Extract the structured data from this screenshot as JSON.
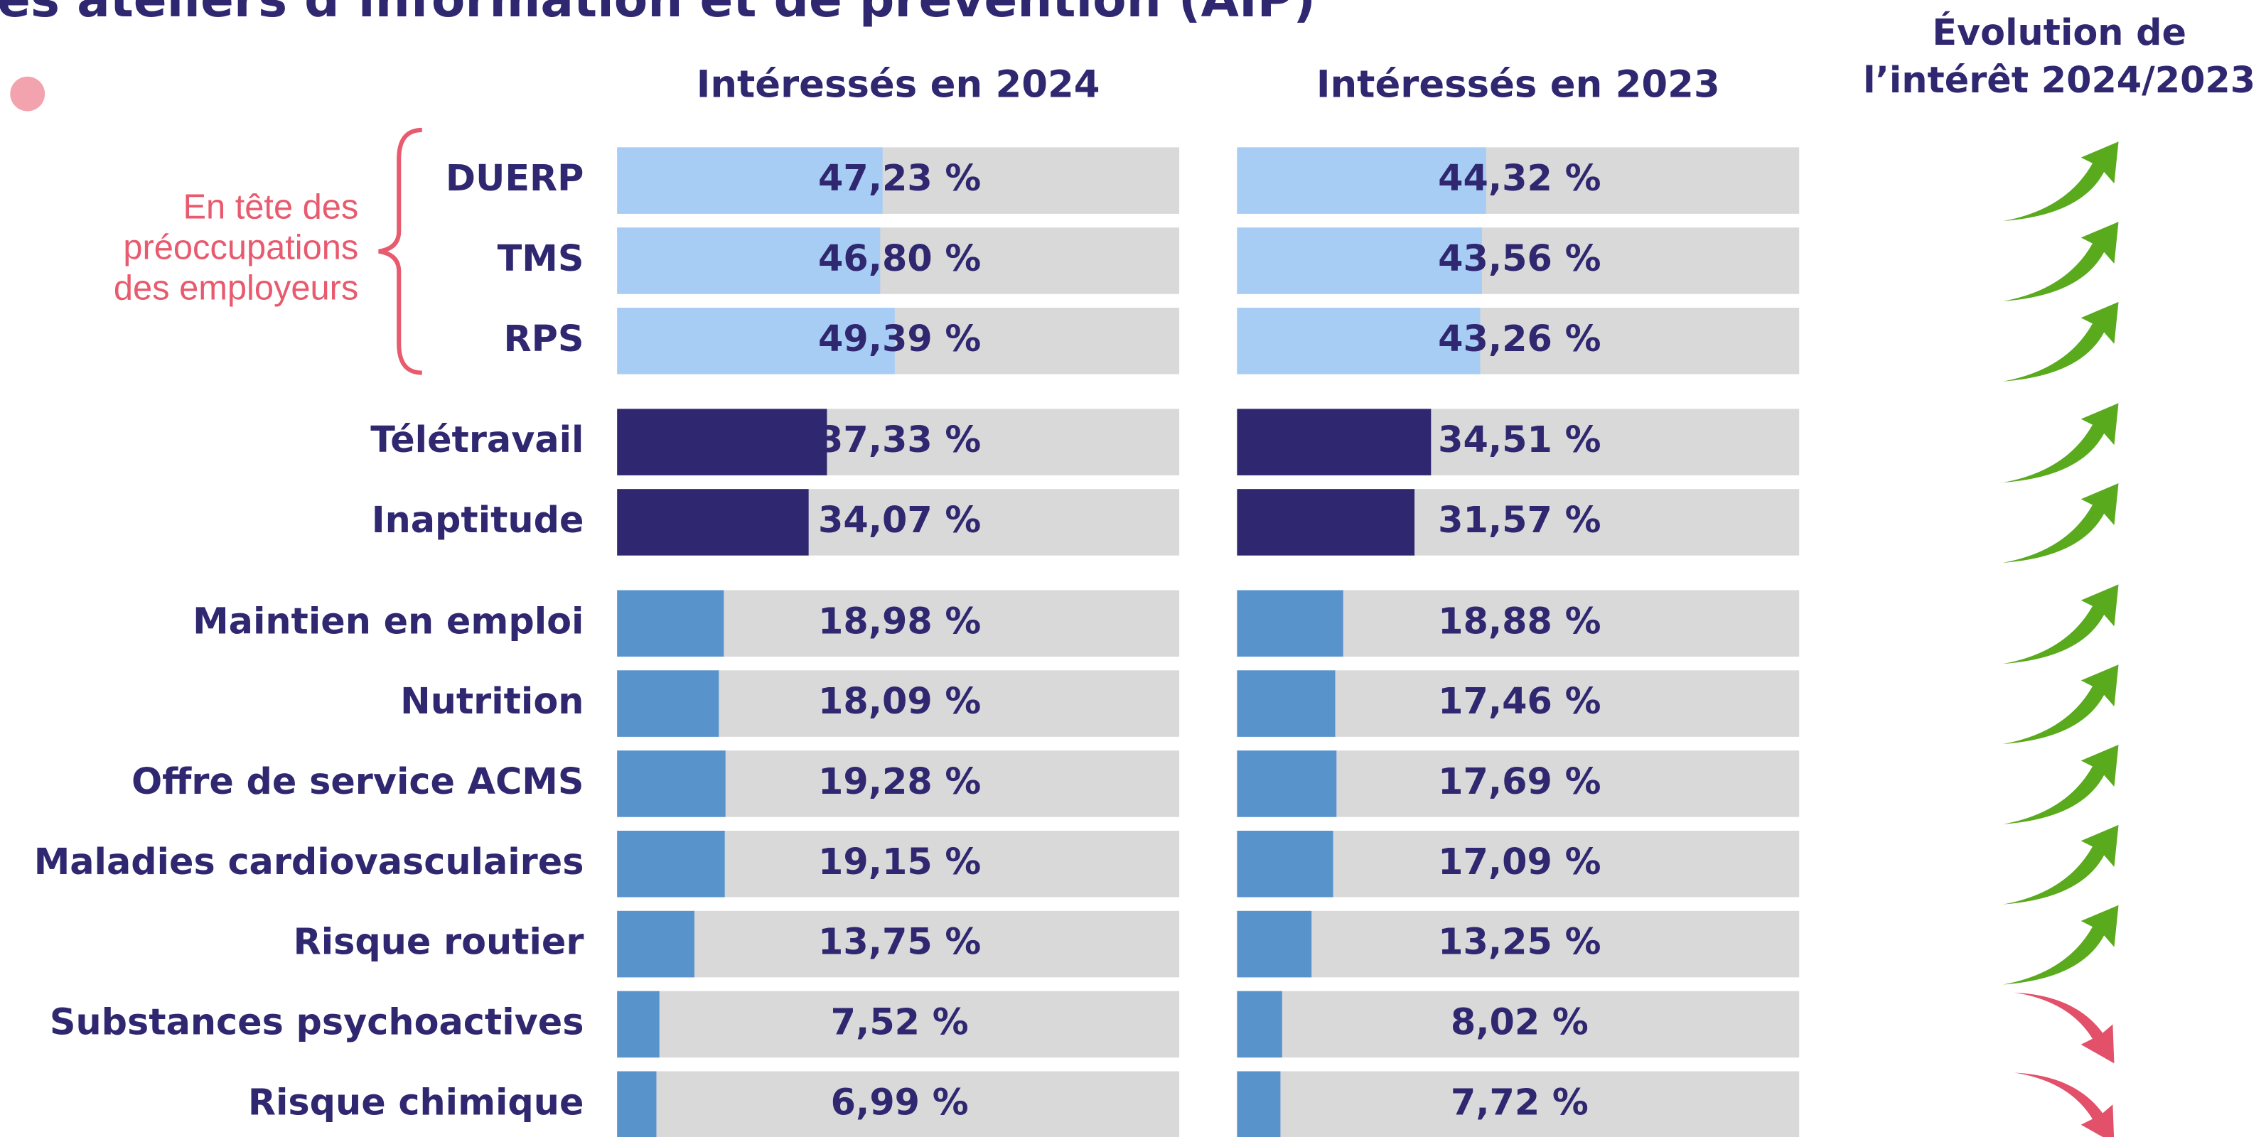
{
  "chart_data": {
    "type": "bar",
    "orientation": "horizontal",
    "title": "es ateliers d’information et de prévention (AIP)",
    "annotation": [
      "En tête des",
      "préoccupations",
      "des employeurs"
    ],
    "evolution_header": [
      "Évolution de",
      "l’intérêt 2024/2023"
    ],
    "categories": [
      "DUERP",
      "TMS",
      "RPS",
      "Télétravail",
      "Inaptitude",
      "Maintien en emploi",
      "Nutrition",
      "Offre de service ACMS",
      "Maladies cardiovasculaires",
      "Risque routier",
      "Substances psychoactives",
      "Risque chimique"
    ],
    "colors": [
      "#a8cdf5",
      "#a8cdf5",
      "#a8cdf5",
      "#2f2870",
      "#2f2870",
      "#5893cc",
      "#5893cc",
      "#5893cc",
      "#5893cc",
      "#5893cc",
      "#5893cc",
      "#5893cc"
    ],
    "track_color": "#d9d9d9",
    "xlim": [
      0,
      100
    ],
    "series": [
      {
        "name": "Intéressés en 2024",
        "values": [
          47.23,
          46.8,
          49.39,
          37.33,
          34.07,
          18.98,
          18.09,
          19.28,
          19.15,
          13.75,
          7.52,
          6.99
        ],
        "value_labels": [
          "47,23 %",
          "46,80 %",
          "49,39 %",
          "37,33 %",
          "34,07 %",
          "18,98 %",
          "18,09 %",
          "19,28 %",
          "19,15 %",
          "13,75 %",
          "7,52 %",
          "6,99 %"
        ]
      },
      {
        "name": "Intéressés en 2023",
        "values": [
          44.32,
          43.56,
          43.26,
          34.51,
          31.57,
          18.88,
          17.46,
          17.69,
          17.09,
          13.25,
          8.02,
          7.72
        ],
        "value_labels": [
          "44,32 %",
          "43,56 %",
          "43,26 %",
          "34,51 %",
          "31,57 %",
          "18,88 %",
          "17,46 %",
          "17,69 %",
          "17,09 %",
          "13,25 %",
          "8,02 %",
          "7,72 %"
        ]
      }
    ]
  }
}
